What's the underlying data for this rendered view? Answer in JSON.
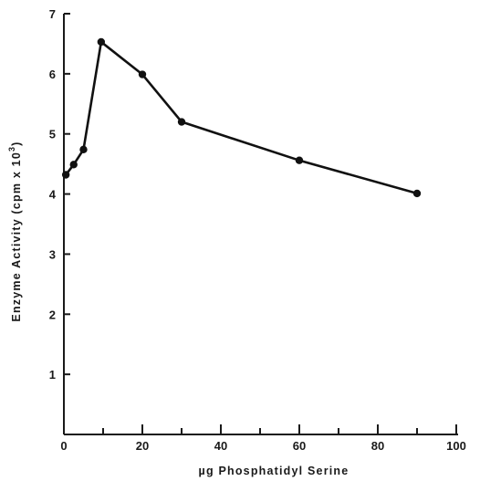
{
  "chart_data": {
    "type": "line",
    "title": "",
    "xlabel": "µg Phosphatidyl Serine",
    "ylabel": "Enzyme Activity (cpm x 10",
    "ylabel_sup": "3",
    "ylabel_close": ")",
    "xlim": [
      0,
      100
    ],
    "ylim": [
      0,
      7
    ],
    "x_ticks_major": [
      0,
      20,
      40,
      60,
      80,
      100
    ],
    "x_ticks_minor": [
      10,
      30,
      50,
      70,
      90
    ],
    "y_ticks": [
      1,
      2,
      3,
      4,
      5,
      6,
      7
    ],
    "x_tick_labels": [
      "0",
      "20",
      "40",
      "60",
      "80",
      "100"
    ],
    "y_tick_labels": [
      "1",
      "2",
      "3",
      "4",
      "5",
      "6",
      "7"
    ],
    "grid": false,
    "series": [
      {
        "x": [
          0.5,
          2.5,
          5,
          9.5,
          20,
          30,
          60,
          90
        ],
        "y": [
          4.32,
          4.49,
          4.74,
          6.53,
          5.99,
          5.2,
          4.56,
          4.01
        ]
      }
    ],
    "colors": {
      "line": "#111111",
      "axis": "#1a1a1a",
      "background": "#ffffff"
    }
  }
}
